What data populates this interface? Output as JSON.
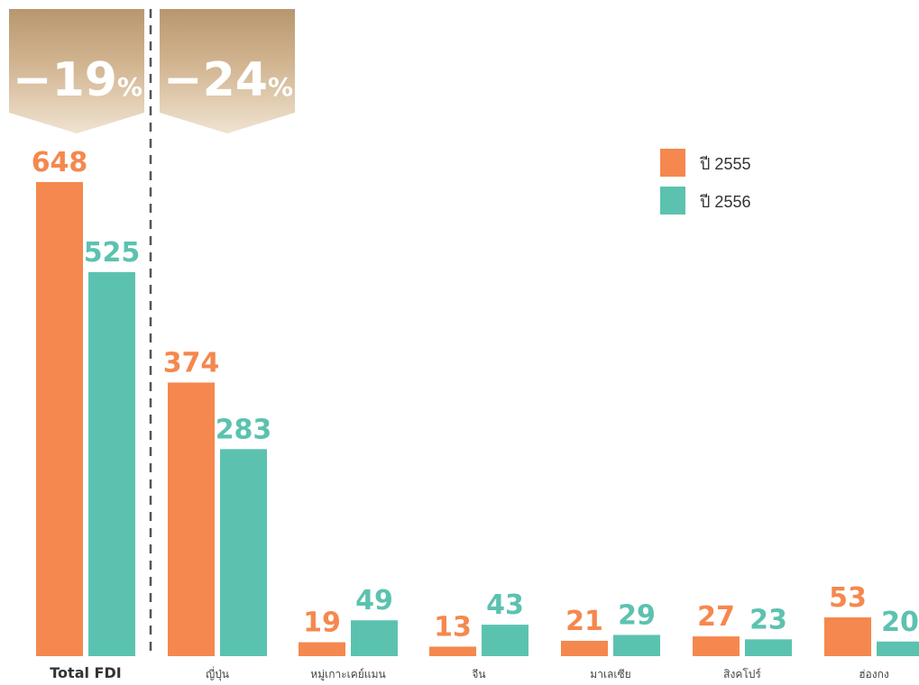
{
  "chart_data": {
    "type": "bar",
    "categories": [
      "Total FDI",
      "ญี่ปุ่น",
      "หมู่เกาะเคย์แมน",
      "จีน",
      "มาเลเซีย",
      "สิงคโปร์",
      "ฮ่องกง"
    ],
    "series": [
      {
        "name": "ปี 2555",
        "color": "#F5884E",
        "values": [
          648,
          374,
          19,
          13,
          21,
          27,
          53
        ]
      },
      {
        "name": "ปี 2556",
        "color": "#5CC2B0",
        "values": [
          525,
          283,
          49,
          43,
          29,
          23,
          20
        ]
      }
    ],
    "ylim": [
      0,
      648
    ],
    "legend_position": "top-right",
    "grid": false,
    "annotations": [
      {
        "id": "badge-total",
        "number": "−19",
        "unit": "%",
        "category": "Total FDI"
      },
      {
        "id": "badge-japan",
        "number": "−24",
        "unit": "%",
        "category": "ญี่ปุ่น"
      }
    ],
    "separator": "dashed line after Total FDI",
    "badge_color": "#C2A37E"
  }
}
